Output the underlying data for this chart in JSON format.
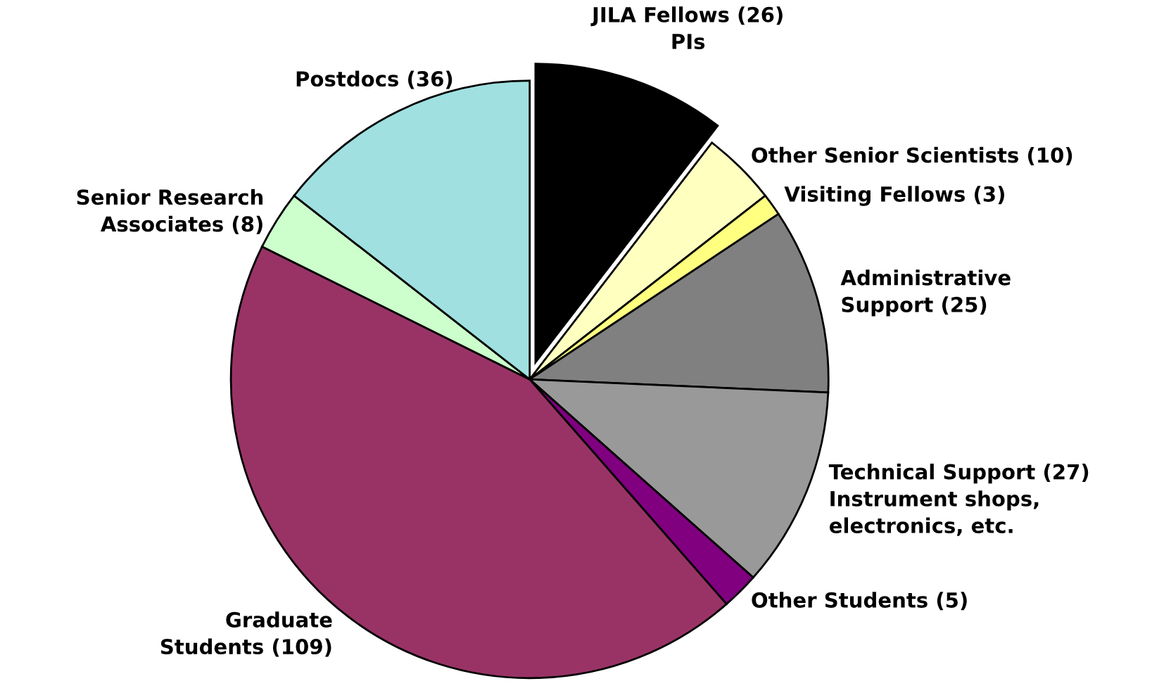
{
  "chart_data": {
    "type": "pie",
    "categories": [
      "JILA Fellows (26)\nPIs",
      "Other Senior Scientists (10)",
      "Visiting Fellows (3)",
      "Administrative\nSupport (25)",
      "Technical Support (27)\nInstrument shops,\nelectronics, etc.",
      "Other Students (5)",
      "Graduate\nStudents (109)",
      "Senior Research\nAssociates (8)",
      "Postdocs (36)"
    ],
    "values": [
      26,
      10,
      3,
      25,
      27,
      5,
      109,
      8,
      36
    ],
    "colors": [
      "#000000",
      "#ffffc0",
      "#ffff80",
      "#808080",
      "#999999",
      "#800080",
      "#993366",
      "#ccffcc",
      "#a0e0e0"
    ]
  }
}
